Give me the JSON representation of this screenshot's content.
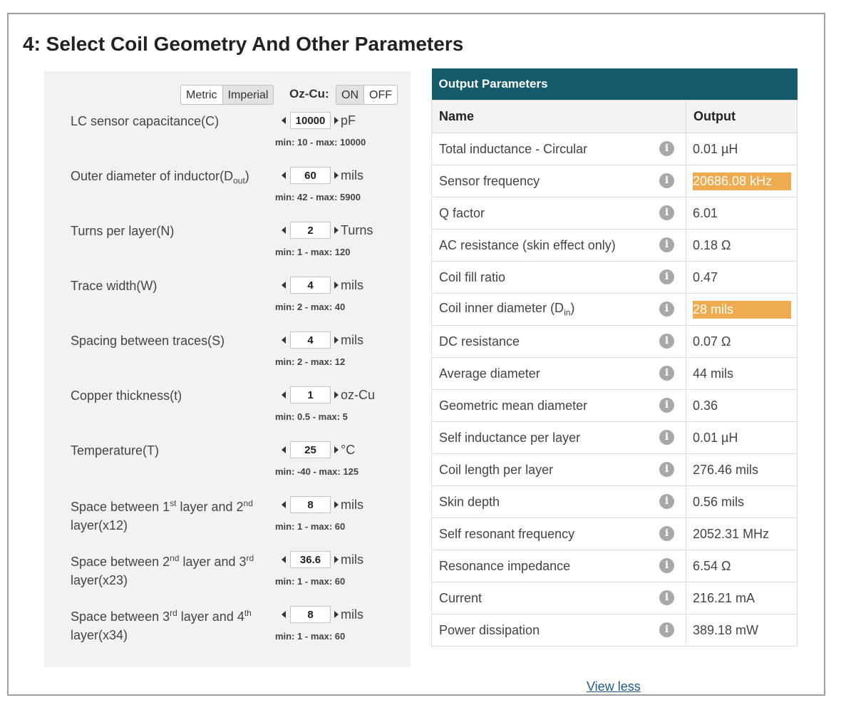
{
  "title": "4: Select Coil Geometry And Other Parameters",
  "units": {
    "metric": "Metric",
    "imperial": "Imperial",
    "selected": "Imperial"
  },
  "oz_cu": {
    "label": "Oz-Cu:",
    "on": "ON",
    "off": "OFF",
    "selected": "ON"
  },
  "params": [
    {
      "label": "LC sensor capacitance(C)",
      "value": "10000",
      "unit": "pF",
      "range": "min: 10 - max: 10000"
    },
    {
      "label_pre": "Outer diameter of inductor(D",
      "label_sub": "out",
      "label_post": ")",
      "value": "60",
      "unit": "mils",
      "range": "min: 42 - max: 5900"
    },
    {
      "label": "Turns per layer(N)",
      "value": "2",
      "unit": "Turns",
      "range": "min: 1 - max: 120"
    },
    {
      "label": "Trace width(W)",
      "value": "4",
      "unit": "mils",
      "range": "min: 2 - max: 40"
    },
    {
      "label": "Spacing between traces(S)",
      "value": "4",
      "unit": "mils",
      "range": "min: 2 - max: 12"
    },
    {
      "label": "Copper thickness(t)",
      "value": "1",
      "unit": "oz-Cu",
      "range": "min: 0.5 - max: 5"
    },
    {
      "label": "Temperature(T)",
      "value": "25",
      "unit": "°C",
      "range": "min: -40 - max: 125"
    },
    {
      "l1": "Space between 1",
      "s1": "st",
      "l2": " layer and 2",
      "s2": "nd",
      "l3": "layer(x12)",
      "value": "8",
      "unit": "mils",
      "range": "min: 1 - max: 60"
    },
    {
      "l1": "Space between 2",
      "s1": "nd",
      "l2": " layer and 3",
      "s2": "rd",
      "l3": "layer(x23)",
      "value": "36.6",
      "unit": "mils",
      "range": "min: 1 - max: 60"
    },
    {
      "l1": "Space between 3",
      "s1": "rd",
      "l2": " layer and 4",
      "s2": "th",
      "l3": "layer(x34)",
      "value": "8",
      "unit": "mils",
      "range": "min: 1 - max: 60"
    }
  ],
  "output": {
    "caption": "Output Parameters",
    "col_name": "Name",
    "col_output": "Output",
    "rows": [
      {
        "name": "Total inductance - Circular",
        "value": "0.01 µH"
      },
      {
        "name": "Sensor frequency",
        "value": "20686.08 kHz"
      },
      {
        "name": "Q factor",
        "value": "6.01"
      },
      {
        "name": "AC resistance (skin effect only)",
        "value": "0.18 Ω"
      },
      {
        "name": "Coil fill ratio",
        "value": "0.47"
      },
      {
        "name_pre": "Coil inner diameter (D",
        "name_sub": "in",
        "name_post": ")",
        "value": "28 mils"
      },
      {
        "name": "DC resistance",
        "value": "0.07 Ω"
      },
      {
        "name": "Average diameter",
        "value": "44 mils"
      },
      {
        "name": "Geometric mean diameter",
        "value": "0.36"
      },
      {
        "name": "Self inductance per layer",
        "value": "0.01 µH"
      },
      {
        "name": "Coil length per layer",
        "value": "276.46 mils"
      },
      {
        "name": "Skin depth",
        "value": "0.56 mils"
      },
      {
        "name": "Self resonant frequency",
        "value": "2052.31 MHz"
      },
      {
        "name": "Resonance impedance",
        "value": "6.54 Ω"
      },
      {
        "name": "Current",
        "value": "216.21 mA"
      },
      {
        "name": "Power dissipation",
        "value": "389.18 mW"
      }
    ],
    "highlight_color": "#efab4f",
    "header_color": "#145a6a",
    "info_icon": "info-circle-icon"
  },
  "view_less": "View less"
}
